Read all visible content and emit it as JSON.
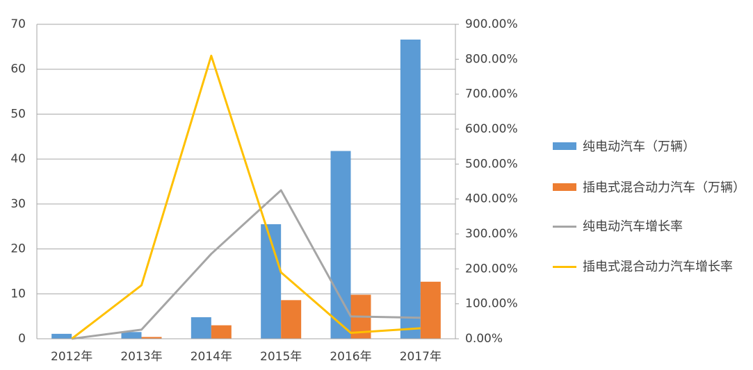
{
  "chart_data": {
    "type": "bar",
    "categories": [
      "2012年",
      "2013年",
      "2014年",
      "2015年",
      "2016年",
      "2017年"
    ],
    "series": [
      {
        "name": "纯电动汽车（万辆）",
        "type": "bar",
        "color": "#5b9bd5",
        "values": [
          1.1,
          1.5,
          4.8,
          25.5,
          41.8,
          66.6
        ]
      },
      {
        "name": "插电式混合动力汽车（万辆）",
        "type": "bar",
        "color": "#ed7d31",
        "values": [
          0,
          0.4,
          3.0,
          8.6,
          9.8,
          12.7
        ]
      },
      {
        "name": "纯电动汽车增长率",
        "type": "line",
        "axis": "y2",
        "color": "#a5a5a5",
        "values": [
          0,
          26,
          243,
          425,
          64,
          60
        ]
      },
      {
        "name": "插电式混合动力汽车增长率",
        "type": "line",
        "axis": "y2",
        "color": "#ffc000",
        "values": [
          0,
          153,
          810,
          190,
          17,
          30
        ]
      }
    ],
    "ylim": [
      0,
      70
    ],
    "yticks": [
      0,
      10,
      20,
      30,
      40,
      50,
      60,
      70
    ],
    "y2lim": [
      0,
      900
    ],
    "y2ticks": [
      {
        "value": 0,
        "label": "0.00%"
      },
      {
        "value": 100,
        "label": "100.00%"
      },
      {
        "value": 200,
        "label": "200.00%"
      },
      {
        "value": 300,
        "label": "300.00%"
      },
      {
        "value": 400,
        "label": "400.00%"
      },
      {
        "value": 500,
        "label": "500.00%"
      },
      {
        "value": 600,
        "label": "600.00%"
      },
      {
        "value": 700,
        "label": "700.00%"
      },
      {
        "value": 800,
        "label": "800.00%"
      },
      {
        "value": 900,
        "label": "900.00%"
      }
    ],
    "grid": true
  }
}
